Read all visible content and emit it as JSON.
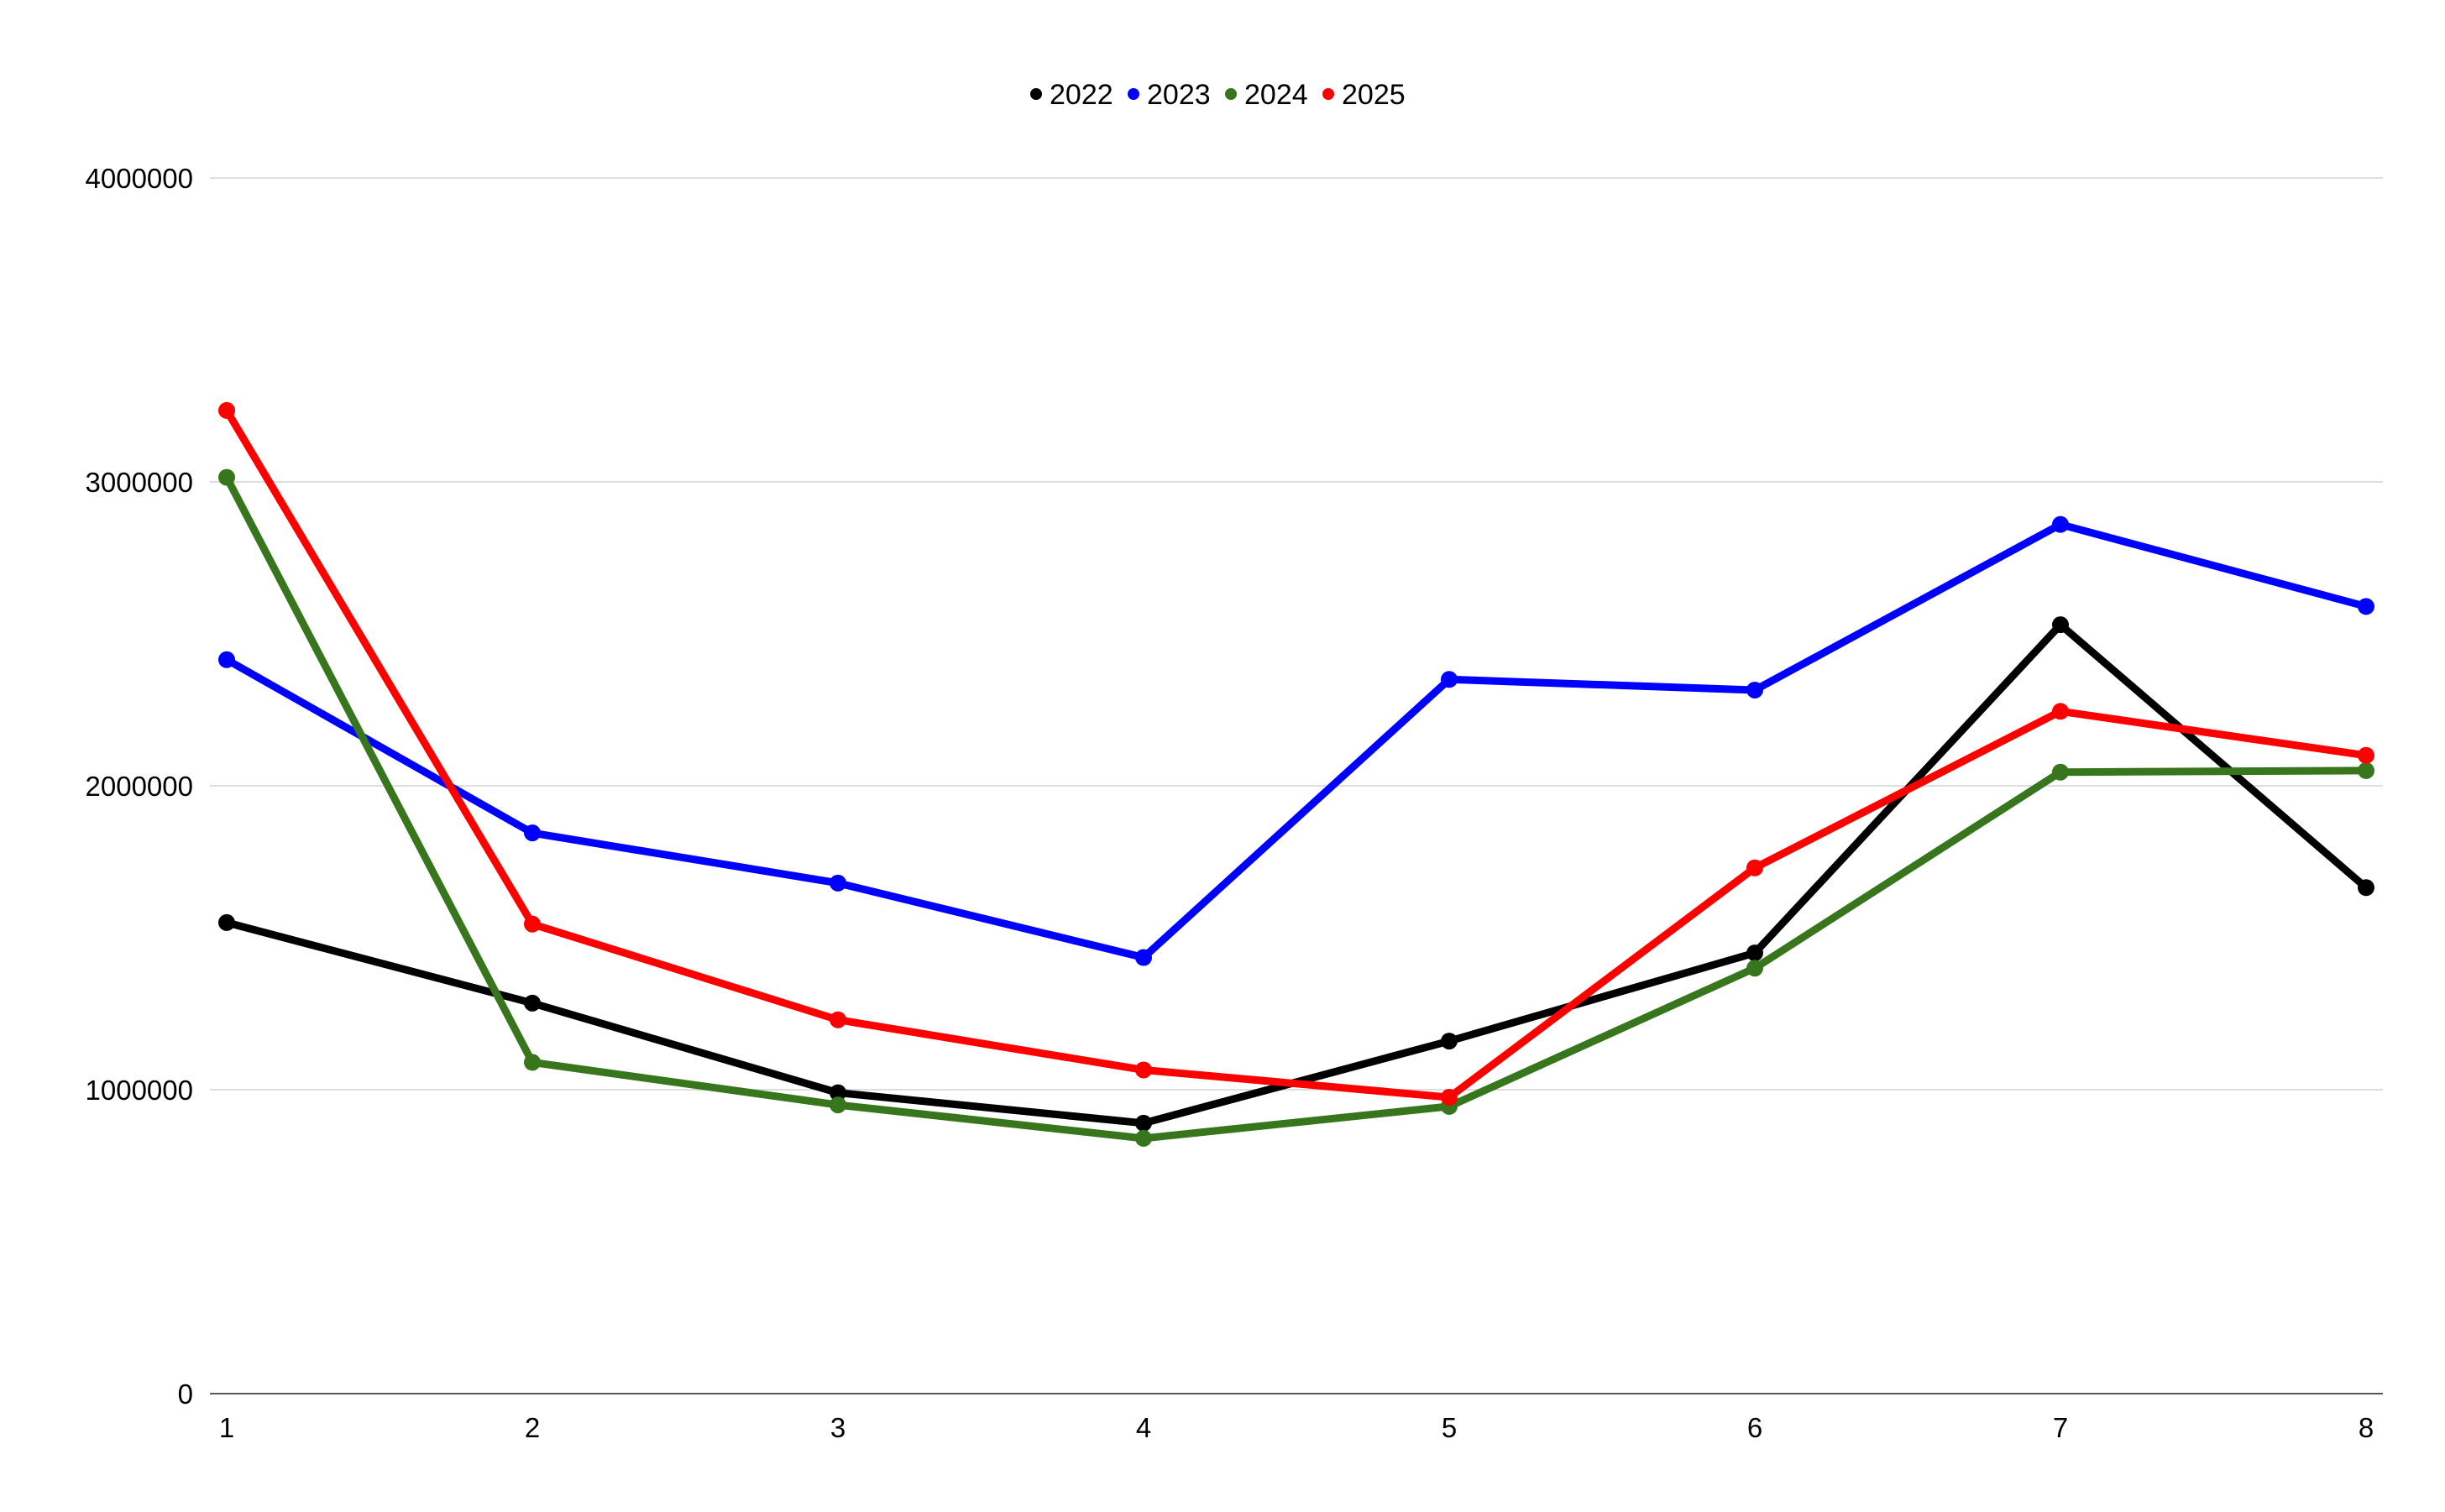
{
  "chart_data": {
    "type": "line",
    "title": "",
    "xlabel": "",
    "ylabel": "",
    "x": [
      1,
      2,
      3,
      4,
      5,
      6,
      7,
      8
    ],
    "ylim": [
      0,
      4000000
    ],
    "yticks": [
      0,
      1000000,
      2000000,
      3000000,
      4000000
    ],
    "ytick_labels": [
      "0",
      "1000000",
      "2000000",
      "3000000",
      "4000000"
    ],
    "xtick_labels": [
      "1",
      "2",
      "3",
      "4",
      "5",
      "6",
      "7",
      "8"
    ],
    "grid": true,
    "legend_position": "top",
    "series": [
      {
        "name": "2022",
        "color": "#000000",
        "values": [
          1550000,
          1285000,
          990000,
          890000,
          1160000,
          1450000,
          2530000,
          1665000
        ]
      },
      {
        "name": "2023",
        "color": "#0000ff",
        "values": [
          2415000,
          1845000,
          1680000,
          1435000,
          2350000,
          2315000,
          2860000,
          2590000
        ]
      },
      {
        "name": "2024",
        "color": "#38761d",
        "values": [
          3015000,
          1090000,
          950000,
          840000,
          945000,
          1400000,
          2045000,
          2050000
        ]
      },
      {
        "name": "2025",
        "color": "#ff0000",
        "values": [
          3235000,
          1545000,
          1230000,
          1065000,
          975000,
          1730000,
          2245000,
          2100000
        ]
      }
    ]
  }
}
